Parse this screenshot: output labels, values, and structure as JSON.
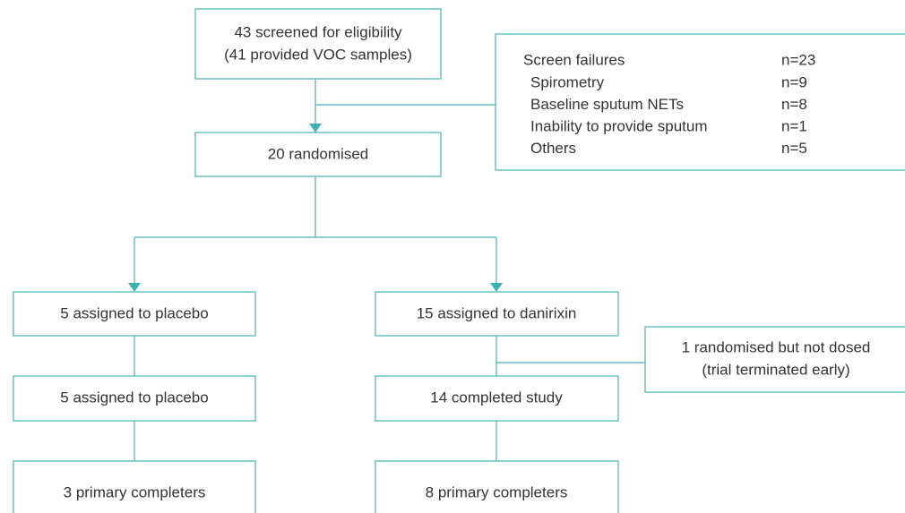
{
  "nodes": [
    {
      "lines": [
        "43 screened for eligibility",
        "(41 provided VOC samples)"
      ]
    },
    {
      "lines": [
        "20 randomised"
      ]
    },
    {
      "lines": [
        "5 assigned to placebo"
      ]
    },
    {
      "lines": [
        "15 assigned to danirixin"
      ]
    },
    {
      "lines": [
        "1 randomised but not dosed",
        "(trial terminated early)"
      ]
    },
    {
      "lines": [
        "5 assigned to placebo"
      ]
    },
    {
      "lines": [
        "14 completed study"
      ]
    },
    {
      "lines": [
        "3 primary completers"
      ]
    },
    {
      "lines": [
        "8 primary completers"
      ]
    }
  ],
  "screen_failures": {
    "title": "Screen failures",
    "count": "n=23",
    "items": [
      {
        "label": "Spirometry",
        "count": "n=9"
      },
      {
        "label": "Baseline sputum NETs",
        "count": "n=8"
      },
      {
        "label": "Inability to provide sputum",
        "count": "n=1"
      },
      {
        "label": "Others",
        "count": "n=5"
      }
    ]
  }
}
